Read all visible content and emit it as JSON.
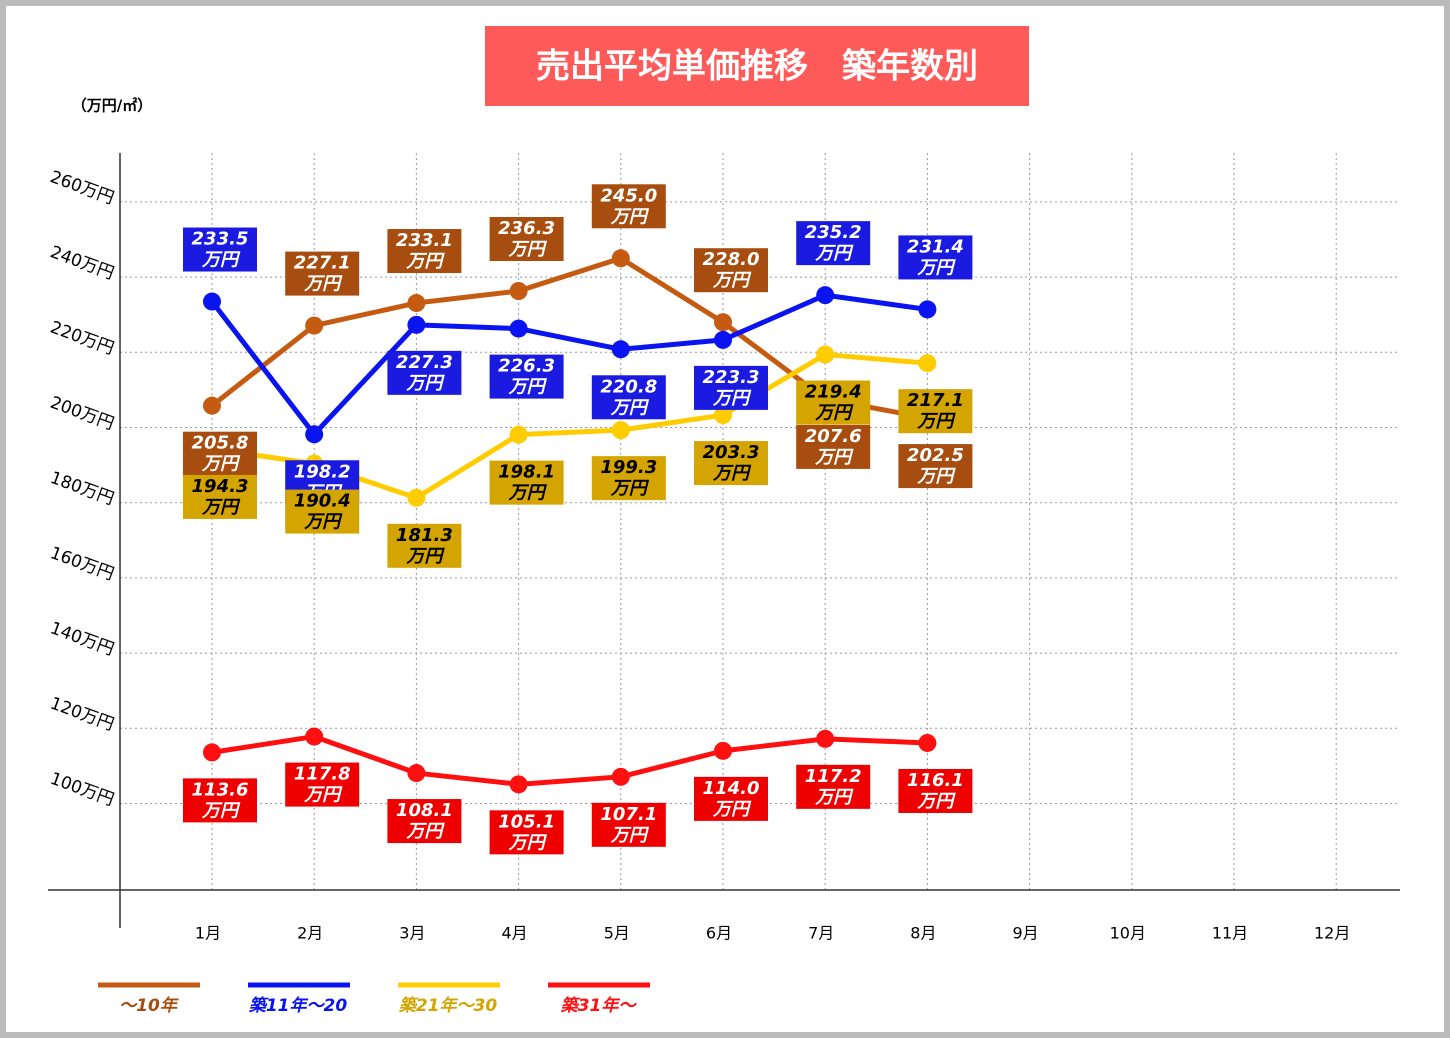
{
  "chart_data": {
    "type": "line",
    "title": "売出平均単価推移　築年数別",
    "y_axis_label": "（万円/㎡）",
    "categories": [
      "1月",
      "2月",
      "3月",
      "4月",
      "5月",
      "6月",
      "7月",
      "8月",
      "9月",
      "10月",
      "11月",
      "12月"
    ],
    "ylim": [
      77,
      273
    ],
    "yticks": [
      {
        "value": 100,
        "label": "100万円"
      },
      {
        "value": 120,
        "label": "120万円"
      },
      {
        "value": 140,
        "label": "140万円"
      },
      {
        "value": 160,
        "label": "160万円"
      },
      {
        "value": 180,
        "label": "180万円"
      },
      {
        "value": 200,
        "label": "200万円"
      },
      {
        "value": 220,
        "label": "220万円"
      },
      {
        "value": 240,
        "label": "240万円"
      },
      {
        "value": 260,
        "label": "260万円"
      }
    ],
    "grid": true,
    "legend": "bottom",
    "series": [
      {
        "name": "～10年",
        "color": "#c55a11",
        "label_color": "#a64d0f",
        "values": [
          205.8,
          227.1,
          233.1,
          236.3,
          245.0,
          228.0,
          207.6,
          202.5,
          null,
          null,
          null,
          null
        ],
        "value_labels": [
          "205.8万円",
          "227.1万円",
          "233.1万円",
          "236.3万円",
          "245.0万円",
          "228.0万円",
          "207.6万円",
          "202.5万円",
          null,
          null,
          null,
          null
        ]
      },
      {
        "name": "築11年～20",
        "color": "#0a14f0",
        "label_color": "#1a1ae0",
        "values": [
          233.5,
          198.2,
          227.3,
          226.3,
          220.8,
          223.3,
          235.2,
          231.4,
          null,
          null,
          null,
          null
        ],
        "value_labels": [
          "233.5万円",
          "198.2万円",
          "227.3万円",
          "226.3万円",
          "220.8万円",
          "223.3万円",
          "235.2万円",
          "231.4万円",
          null,
          null,
          null,
          null
        ]
      },
      {
        "name": "築21年～30",
        "color": "#ffcc00",
        "label_color": "#d4a500",
        "values": [
          194.3,
          190.4,
          181.3,
          198.1,
          199.3,
          203.3,
          219.4,
          217.1,
          null,
          null,
          null,
          null
        ],
        "value_labels": [
          "194.3万円",
          "190.4万円",
          "181.3万円",
          "198.1万円",
          "199.3万円",
          "203.3万円",
          "219.4万円",
          "217.1万円",
          null,
          null,
          null,
          null
        ]
      },
      {
        "name": "築31年～",
        "color": "#ff1010",
        "label_color": "#ee0000",
        "values": [
          113.6,
          117.8,
          108.1,
          105.1,
          107.1,
          114.0,
          117.2,
          116.1,
          null,
          null,
          null,
          null
        ],
        "value_labels": [
          "113.6万円",
          "117.8万円",
          "108.1万円",
          "105.1万円",
          "107.1万円",
          "114.0万円",
          "117.2万円",
          "116.1万円",
          null,
          null,
          null,
          null
        ]
      }
    ]
  }
}
